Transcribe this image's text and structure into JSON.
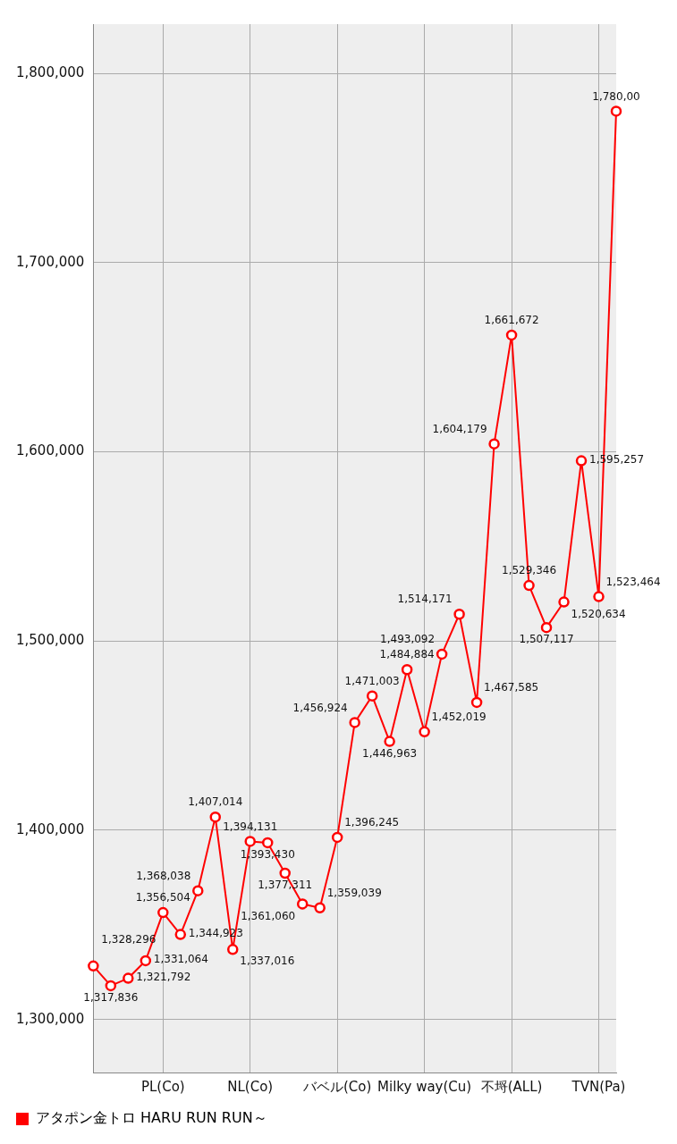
{
  "chart_data": {
    "type": "line",
    "categories": [
      null,
      null,
      null,
      null,
      "PL(Co)",
      null,
      null,
      null,
      null,
      "NL(Co)",
      null,
      null,
      null,
      null,
      "バベル(Co)",
      null,
      null,
      null,
      null,
      "Milky way(Cu)",
      null,
      null,
      null,
      null,
      "不埒(ALL)",
      null,
      null,
      null,
      null,
      "TVN(Pa)",
      null
    ],
    "series": [
      {
        "name": "アタポン金トロ HARU RUN RUN～",
        "color": "#ff0000",
        "values": [
          1328296,
          1317836,
          1321792,
          1331064,
          1356504,
          1344923,
          1368038,
          1407014,
          1337016,
          1394131,
          1393430,
          1377311,
          1361060,
          1359039,
          1396245,
          1456924,
          1471003,
          1446963,
          1484884,
          1452019,
          1493092,
          1514171,
          1467585,
          1604179,
          1661672,
          1529346,
          1507117,
          1520634,
          1595257,
          1523464,
          1780000
        ],
        "value_labels": [
          "1,328,296",
          "1,317,836",
          "1,321,792",
          "1,331,064",
          "1,356,504",
          "1,344,923",
          "1,368,038",
          "1,407,014",
          "1,337,016",
          "1,394,131",
          "1,393,430",
          "1,377,311",
          "1,361,060",
          "1,359,039",
          "1,396,245",
          "1,456,924",
          "1,471,003",
          "1,446,963",
          "1,484,884",
          "1,452,019",
          "1,493,092",
          "1,514,171",
          "1,467,585",
          "1,604,179",
          "1,661,672",
          "1,529,346",
          "1,507,117",
          "1,520,634",
          "1,595,257",
          "1,523,464",
          "1,780,00"
        ]
      }
    ],
    "ylim": [
      1272000,
      1826000
    ],
    "yticks": [
      {
        "value": 1300000,
        "label": "1,300,000"
      },
      {
        "value": 1400000,
        "label": "1,400,000"
      },
      {
        "value": 1500000,
        "label": "1,500,000"
      },
      {
        "value": 1600000,
        "label": "1,600,000"
      },
      {
        "value": 1700000,
        "label": "1,700,000"
      },
      {
        "value": 1800000,
        "label": "1,800,000"
      }
    ],
    "grid": true,
    "legend": "bottom left",
    "marker": "circle",
    "line_style": "solid"
  }
}
